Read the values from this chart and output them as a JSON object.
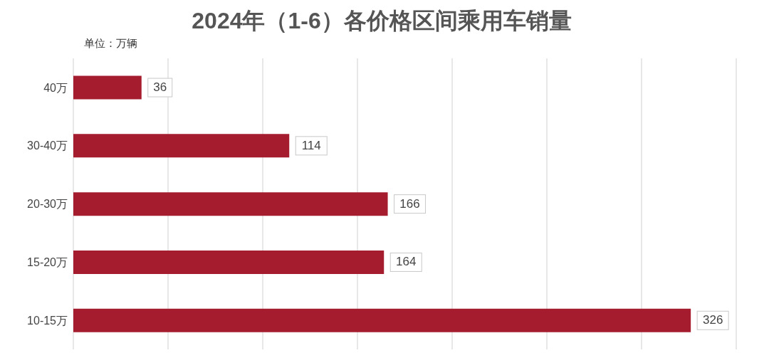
{
  "chart_data": {
    "type": "bar",
    "orientation": "horizontal",
    "title": "2024年（1-6）各价格区间乘用车销量",
    "annotations": [
      "单位：万辆"
    ],
    "categories": [
      "40万",
      "30-40万",
      "20-30万",
      "15-20万",
      "10-15万"
    ],
    "values": [
      36,
      114,
      166,
      164,
      326
    ],
    "color": "#a51c2e",
    "tick_labels": "y",
    "grid": "x",
    "data_labels": true
  }
}
